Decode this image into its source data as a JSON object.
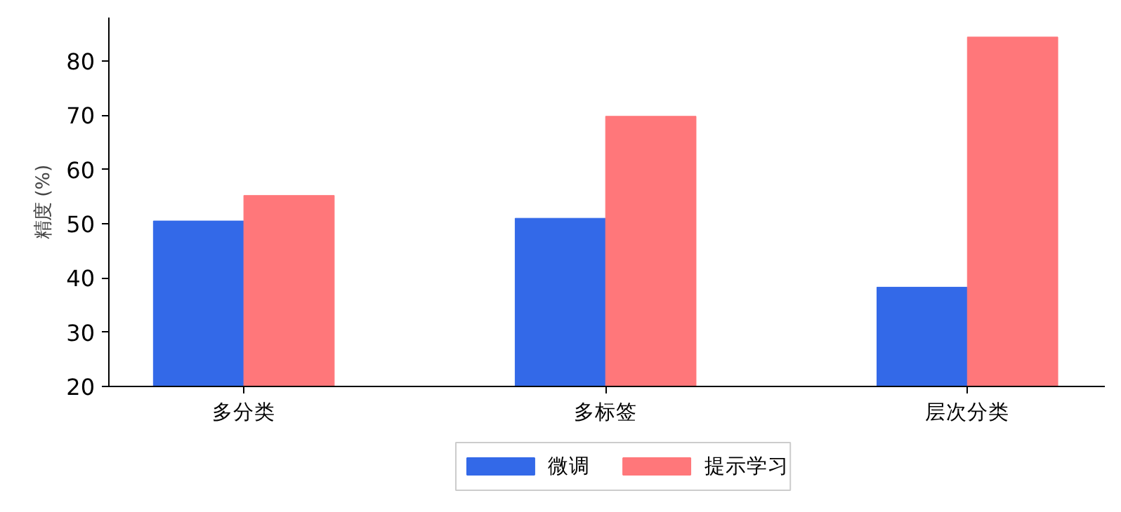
{
  "chart_data": {
    "type": "bar",
    "ylabel": "精度 (%)",
    "categories": [
      "多分类",
      "多标签",
      "层次分类"
    ],
    "series": [
      {
        "name": "微调",
        "color": "#3369e8",
        "values": [
          50.5,
          51.0,
          38.3
        ]
      },
      {
        "name": "提示学习",
        "color": "#ff777a",
        "values": [
          55.2,
          69.8,
          84.4
        ]
      }
    ],
    "ylim": [
      20,
      88
    ],
    "yticks": [
      20,
      30,
      40,
      50,
      60,
      70,
      80
    ],
    "grid": false,
    "legend": "bottom"
  }
}
